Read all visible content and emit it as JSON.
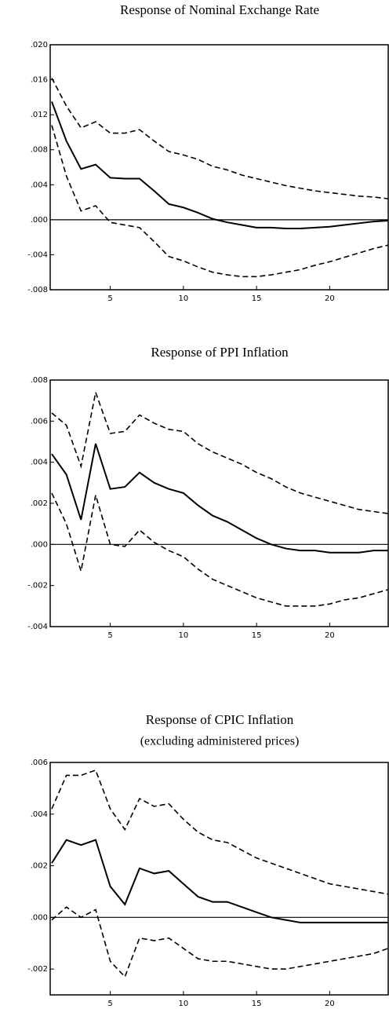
{
  "chart_data": [
    {
      "type": "line",
      "title": "Response of Nominal Exchange Rate",
      "x": [
        1,
        2,
        3,
        4,
        5,
        6,
        7,
        8,
        9,
        10,
        11,
        12,
        13,
        14,
        15,
        16,
        17,
        18,
        19,
        20,
        21,
        22,
        23,
        24
      ],
      "xlim": [
        1,
        24
      ],
      "xticks": [
        5,
        10,
        15,
        20
      ],
      "ylim": [
        -0.008,
        0.02
      ],
      "yticks": [
        {
          "value": 0.02,
          "label": ".020"
        },
        {
          "value": 0.016,
          "label": ".016"
        },
        {
          "value": 0.012,
          "label": ".012"
        },
        {
          "value": 0.008,
          "label": ".008"
        },
        {
          "value": 0.004,
          "label": ".004"
        },
        {
          "value": 0.0,
          "label": ".000"
        },
        {
          "value": -0.004,
          "label": "-.004"
        },
        {
          "value": -0.008,
          "label": "-.008"
        }
      ],
      "series": [
        {
          "color": "#000000",
          "style": "solid",
          "values": [
            0.0135,
            0.009,
            0.0058,
            0.0063,
            0.0048,
            0.0047,
            0.0047,
            0.0033,
            0.0018,
            0.0014,
            0.0008,
            0.0001,
            -0.0003,
            -0.0006,
            -0.0009,
            -0.0009,
            -0.001,
            -0.001,
            -0.0009,
            -0.0008,
            -0.0006,
            -0.0004,
            -0.0002,
            -0.0001
          ]
        },
        {
          "color": "#000000",
          "style": "dashed",
          "values": [
            0.0162,
            0.013,
            0.0105,
            0.0112,
            0.0099,
            0.0099,
            0.0103,
            0.009,
            0.0078,
            0.0074,
            0.0069,
            0.0061,
            0.0057,
            0.0051,
            0.0047,
            0.0043,
            0.0039,
            0.0036,
            0.0033,
            0.0031,
            0.0029,
            0.0027,
            0.0026,
            0.0024
          ]
        },
        {
          "color": "#000000",
          "style": "dashed",
          "values": [
            0.0108,
            0.005,
            0.001,
            0.0016,
            -0.0003,
            -0.0006,
            -0.0009,
            -0.0025,
            -0.0042,
            -0.0047,
            -0.0054,
            -0.006,
            -0.0063,
            -0.0065,
            -0.0065,
            -0.0063,
            -0.006,
            -0.0057,
            -0.0052,
            -0.0048,
            -0.0043,
            -0.0038,
            -0.0033,
            -0.0029
          ]
        }
      ]
    },
    {
      "type": "line",
      "title": "Response of PPI Inflation",
      "x": [
        1,
        2,
        3,
        4,
        5,
        6,
        7,
        8,
        9,
        10,
        11,
        12,
        13,
        14,
        15,
        16,
        17,
        18,
        19,
        20,
        21,
        22,
        23,
        24
      ],
      "xlim": [
        1,
        24
      ],
      "xticks": [
        5,
        10,
        15,
        20
      ],
      "ylim": [
        -0.004,
        0.008
      ],
      "yticks": [
        {
          "value": 0.008,
          "label": ".008"
        },
        {
          "value": 0.006,
          "label": ".006"
        },
        {
          "value": 0.004,
          "label": ".004"
        },
        {
          "value": 0.002,
          "label": ".002"
        },
        {
          "value": 0.0,
          "label": ".000"
        },
        {
          "value": -0.002,
          "label": "-.002"
        },
        {
          "value": -0.004,
          "label": "-.004"
        }
      ],
      "series": [
        {
          "color": "#000000",
          "style": "solid",
          "values": [
            0.0044,
            0.0034,
            0.0012,
            0.0049,
            0.0027,
            0.0028,
            0.0035,
            0.003,
            0.0027,
            0.0025,
            0.0019,
            0.0014,
            0.0011,
            0.0007,
            0.0003,
            0.0,
            -0.0002,
            -0.0003,
            -0.0003,
            -0.0004,
            -0.0004,
            -0.0004,
            -0.0003,
            -0.0003
          ]
        },
        {
          "color": "#000000",
          "style": "dashed",
          "values": [
            0.0064,
            0.0058,
            0.0038,
            0.0074,
            0.0054,
            0.0055,
            0.0063,
            0.0059,
            0.0056,
            0.0055,
            0.0049,
            0.0045,
            0.0042,
            0.0039,
            0.0035,
            0.0032,
            0.0028,
            0.0025,
            0.0023,
            0.0021,
            0.0019,
            0.0017,
            0.0016,
            0.0015
          ]
        },
        {
          "color": "#000000",
          "style": "dashed",
          "values": [
            0.0025,
            0.001,
            -0.0013,
            0.0024,
            0.0,
            -0.0001,
            0.0007,
            0.0001,
            -0.0003,
            -0.0006,
            -0.0012,
            -0.0017,
            -0.002,
            -0.0023,
            -0.0026,
            -0.0028,
            -0.003,
            -0.003,
            -0.003,
            -0.0029,
            -0.0027,
            -0.0026,
            -0.0024,
            -0.0022
          ]
        }
      ]
    },
    {
      "type": "line",
      "title": "Response of CPIC Inflation",
      "subtitle": "(excluding administered prices)",
      "x": [
        1,
        2,
        3,
        4,
        5,
        6,
        7,
        8,
        9,
        10,
        11,
        12,
        13,
        14,
        15,
        16,
        17,
        18,
        19,
        20,
        21,
        22,
        23,
        24
      ],
      "xlim": [
        1,
        24
      ],
      "xticks": [
        5,
        10,
        15,
        20
      ],
      "ylim": [
        -0.003,
        0.006
      ],
      "yticks": [
        {
          "value": 0.006,
          "label": ".006"
        },
        {
          "value": 0.004,
          "label": ".004"
        },
        {
          "value": 0.002,
          "label": ".002"
        },
        {
          "value": 0.0,
          "label": ".000"
        },
        {
          "value": -0.002,
          "label": "-.002"
        }
      ],
      "series": [
        {
          "color": "#000000",
          "style": "solid",
          "values": [
            0.0021,
            0.003,
            0.0028,
            0.003,
            0.0012,
            0.0005,
            0.0019,
            0.0017,
            0.0018,
            0.0013,
            0.0008,
            0.0006,
            0.0006,
            0.0004,
            0.0002,
            0.0,
            -0.0001,
            -0.0002,
            -0.0002,
            -0.0002,
            -0.0002,
            -0.0002,
            -0.0002,
            -0.0002
          ]
        },
        {
          "color": "#000000",
          "style": "dashed",
          "values": [
            0.0042,
            0.0055,
            0.0055,
            0.0057,
            0.0042,
            0.0034,
            0.0046,
            0.0043,
            0.0044,
            0.0038,
            0.0033,
            0.003,
            0.0029,
            0.0026,
            0.0023,
            0.0021,
            0.0019,
            0.0017,
            0.0015,
            0.0013,
            0.0012,
            0.0011,
            0.001,
            0.0009
          ]
        },
        {
          "color": "#000000",
          "style": "dashed",
          "values": [
            -0.0001,
            0.0004,
            0.0,
            0.0003,
            -0.0017,
            -0.0023,
            -0.0008,
            -0.0009,
            -0.0008,
            -0.0012,
            -0.0016,
            -0.0017,
            -0.0017,
            -0.0018,
            -0.0019,
            -0.002,
            -0.002,
            -0.0019,
            -0.0018,
            -0.0017,
            -0.0016,
            -0.0015,
            -0.0014,
            -0.0012
          ]
        }
      ]
    }
  ]
}
